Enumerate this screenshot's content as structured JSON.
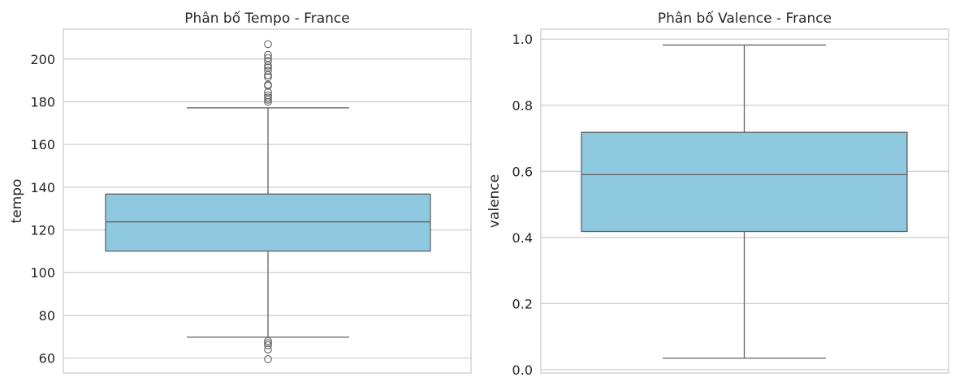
{
  "chart_data": [
    {
      "type": "box",
      "title": "Phân bố Tempo - France",
      "xlabel": "",
      "ylabel": "tempo",
      "ylim": [
        53,
        214
      ],
      "yticks": [
        60,
        80,
        100,
        120,
        140,
        160,
        180,
        200
      ],
      "grid": true,
      "box": {
        "whisker_low": 69.8,
        "q1": 110.1,
        "median": 123.8,
        "q3": 136.8,
        "whisker_high": 177.2,
        "outliers": [
          180.0,
          181.0,
          182.0,
          183.0,
          184.5,
          187.5,
          188.0,
          191.5,
          192.5,
          194.5,
          196.0,
          197.0,
          199.0,
          200.5,
          202.0,
          207.0,
          68.0,
          67.0,
          66.0,
          64.0,
          59.5
        ]
      },
      "color": "#8fc9e0",
      "edge_color": "#616161"
    },
    {
      "type": "box",
      "title": "Phân bố Valence - France",
      "xlabel": "",
      "ylabel": "valence",
      "ylim": [
        -0.01,
        1.03
      ],
      "yticks": [
        0.0,
        0.2,
        0.4,
        0.6,
        0.8,
        1.0
      ],
      "ytick_labels": [
        "0.0",
        "0.2",
        "0.4",
        "0.6",
        "0.8",
        "1.0"
      ],
      "grid": true,
      "box": {
        "whisker_low": 0.035,
        "q1": 0.418,
        "median": 0.59,
        "q3": 0.718,
        "whisker_high": 0.982,
        "outliers": []
      },
      "color": "#8fc9e0",
      "edge_color": "#616161"
    }
  ]
}
